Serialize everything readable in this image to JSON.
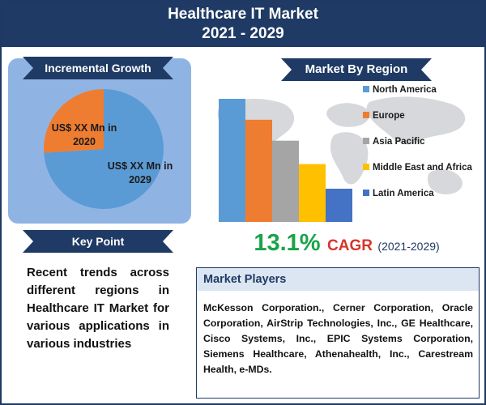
{
  "header": {
    "line1": "Healthcare IT Market",
    "line2": "2021 - 2029"
  },
  "incremental_growth": {
    "title": "Incremental Growth",
    "label_2020": "US$ XX Mn in 2020",
    "label_2029": "US$ XX Mn in 2029",
    "color_2020": "#ee7d31",
    "color_2029": "#5b9bd5",
    "share_2020": 0.26
  },
  "key_point": {
    "title": "Key Point",
    "text": "Recent trends across different regions in Healthcare IT Market for various applications in various industries"
  },
  "market_by_region": {
    "title": "Market By Region"
  },
  "chart_data": {
    "type": "bar",
    "categories": [
      "North America",
      "Europe",
      "Asia Pacific",
      "Middle East and Africa",
      "Latin America"
    ],
    "values": [
      100,
      83,
      66,
      47,
      27
    ],
    "colors": [
      "#5b9bd5",
      "#ee7d31",
      "#a5a5a5",
      "#ffc000",
      "#4472c4"
    ],
    "legend": [
      "North America",
      "Europe",
      "Asia Pacific",
      "Middle East and Africa",
      "Latin America"
    ],
    "legend_position": "right",
    "grid": false,
    "axes_visible": false
  },
  "cagr": {
    "value": "13.1%",
    "label": "CAGR",
    "period": "(2021-2029)"
  },
  "market_players": {
    "title": "Market Players",
    "text": "McKesson Corporation., Cerner Corporation, Oracle Corporation, AirStrip Technologies, Inc., GE Healthcare, Cisco Systems, Inc., EPIC Systems Corporation, Siemens Healthcare, Athenahealth, Inc., Carestream Health, e-MDs."
  },
  "icons": {
    "map": "world-map-icon"
  }
}
